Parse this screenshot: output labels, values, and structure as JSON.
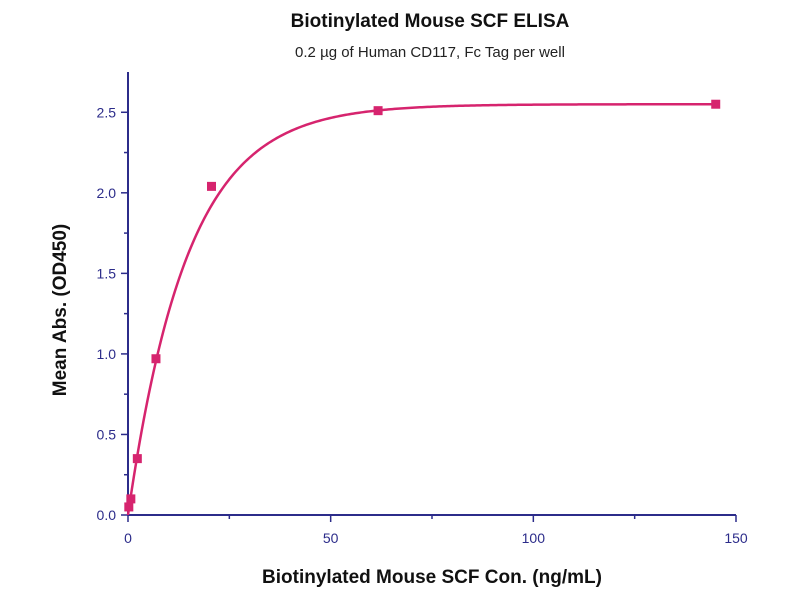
{
  "chart_data": {
    "type": "scatter",
    "title": "Biotinylated Mouse SCF ELISA",
    "subtitle": "0.2 µg of Human CD117, Fc Tag per well",
    "xlabel": "Biotinylated Mouse SCF Con. (ng/mL)",
    "ylabel": "Mean Abs. (OD450)",
    "xlim": [
      0,
      150
    ],
    "ylim": [
      0,
      2.75
    ],
    "x_ticks": [
      "0",
      "50",
      "100",
      "150"
    ],
    "y_ticks": [
      "0.0",
      "0.5",
      "1.0",
      "1.5",
      "2.0",
      "2.5"
    ],
    "x_tick_values": [
      0,
      50,
      100,
      150
    ],
    "y_tick_values": [
      0,
      0.5,
      1.0,
      1.5,
      2.0,
      2.5
    ],
    "grid": false,
    "legend": "none",
    "colors": {
      "series": "#d6246e",
      "axis": "#2c2c8a"
    },
    "series": [
      {
        "points": [
          {
            "x": 0.2,
            "y": 0.05
          },
          {
            "x": 0.7,
            "y": 0.1
          },
          {
            "x": 2.3,
            "y": 0.35
          },
          {
            "x": 6.9,
            "y": 0.97
          },
          {
            "x": 20.6,
            "y": 2.04
          },
          {
            "x": 61.7,
            "y": 2.51
          },
          {
            "x": 145,
            "y": 2.55
          }
        ],
        "fit": {
          "model": "saturation",
          "ymax": 2.55,
          "k": 0.068
        }
      }
    ]
  }
}
